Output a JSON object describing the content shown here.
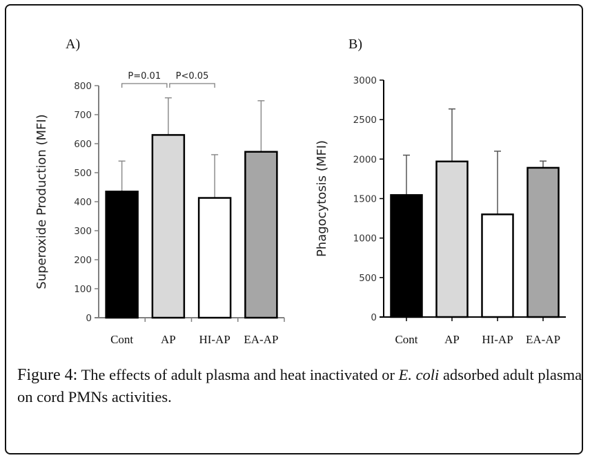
{
  "figure": {
    "caption_label": "Figure 4:",
    "caption_text_1": " The effects of adult plasma and heat inactivated or ",
    "caption_italic": "E. coli",
    "caption_text_2": " adsorbed adult plasma on cord PMNs activities."
  },
  "chart_data": [
    {
      "type": "bar",
      "panel_label": "A)",
      "title": "",
      "xlabel": "",
      "ylabel": "Superoxide Production (MFI)",
      "categories": [
        "Cont",
        "AP",
        "HI-AP",
        "EA-AP"
      ],
      "values": [
        435,
        630,
        413,
        572
      ],
      "error_upper": [
        540,
        758,
        562,
        748
      ],
      "colors": [
        "#000000",
        "#d9d9d9",
        "#ffffff",
        "#a6a6a6"
      ],
      "ylim": [
        0,
        800
      ],
      "yticks": [
        0,
        100,
        200,
        300,
        400,
        500,
        600,
        700,
        800
      ],
      "grid": false,
      "legend": "none",
      "annotations": [
        {
          "label": "P=0.01",
          "from": "Cont",
          "to": "AP"
        },
        {
          "label": "P<0.05",
          "from": "AP",
          "to": "HI-AP"
        }
      ]
    },
    {
      "type": "bar",
      "panel_label": "B)",
      "title": "",
      "xlabel": "",
      "ylabel": "Phagocytosis (MFI)",
      "categories": [
        "Cont",
        "AP",
        "HI-AP",
        "EA-AP"
      ],
      "values": [
        1545,
        1970,
        1300,
        1890
      ],
      "error_upper": [
        2050,
        2635,
        2100,
        1975
      ],
      "colors": [
        "#000000",
        "#d9d9d9",
        "#ffffff",
        "#a6a6a6"
      ],
      "ylim": [
        0,
        3000
      ],
      "yticks": [
        0,
        500,
        1000,
        1500,
        2000,
        2500,
        3000
      ],
      "grid": false,
      "legend": "none",
      "annotations": []
    }
  ]
}
